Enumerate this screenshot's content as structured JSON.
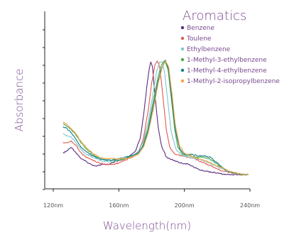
{
  "chart_data": {
    "type": "line",
    "title": "",
    "xlabel": "Wavelength(nm)",
    "ylabel": "Absorbance",
    "xlim": [
      120,
      240
    ],
    "x_ticks": [
      "120nm",
      "160nm",
      "200nm",
      "240nm"
    ],
    "x_tick_values": [
      120,
      160,
      200,
      240
    ],
    "legend_title": "Aromatics",
    "legend_position": "top-right",
    "grid": false,
    "series": [
      {
        "name": "Benzene",
        "color": "#5b2d7e",
        "points": [
          [
            126,
            0.2
          ],
          [
            128,
            0.21
          ],
          [
            131,
            0.24
          ],
          [
            134,
            0.2
          ],
          [
            137,
            0.16
          ],
          [
            140,
            0.14
          ],
          [
            143,
            0.12
          ],
          [
            146,
            0.11
          ],
          [
            150,
            0.12
          ],
          [
            154,
            0.12
          ],
          [
            158,
            0.14
          ],
          [
            162,
            0.15
          ],
          [
            166,
            0.17
          ],
          [
            170,
            0.21
          ],
          [
            173,
            0.3
          ],
          [
            175,
            0.45
          ],
          [
            177,
            0.65
          ],
          [
            178.5,
            0.78
          ],
          [
            179.5,
            0.83
          ],
          [
            180.5,
            0.8
          ],
          [
            182,
            0.6
          ],
          [
            184,
            0.38
          ],
          [
            186,
            0.25
          ],
          [
            189,
            0.17
          ],
          [
            193,
            0.15
          ],
          [
            198,
            0.13
          ],
          [
            203,
            0.12
          ],
          [
            206,
            0.1
          ],
          [
            210,
            0.08
          ],
          [
            215,
            0.07
          ],
          [
            220,
            0.06
          ],
          [
            225,
            0.05
          ],
          [
            230,
            0.05
          ],
          [
            235,
            0.05
          ],
          [
            239,
            0.05
          ]
        ]
      },
      {
        "name": "Toulene",
        "color": "#e05a4e",
        "points": [
          [
            126,
            0.27
          ],
          [
            128,
            0.27
          ],
          [
            131,
            0.28
          ],
          [
            134,
            0.25
          ],
          [
            137,
            0.2
          ],
          [
            140,
            0.17
          ],
          [
            144,
            0.15
          ],
          [
            148,
            0.13
          ],
          [
            152,
            0.12
          ],
          [
            156,
            0.12
          ],
          [
            160,
            0.13
          ],
          [
            164,
            0.15
          ],
          [
            168,
            0.17
          ],
          [
            172,
            0.21
          ],
          [
            175,
            0.3
          ],
          [
            178,
            0.5
          ],
          [
            180,
            0.68
          ],
          [
            182,
            0.81
          ],
          [
            183.5,
            0.84
          ],
          [
            185,
            0.79
          ],
          [
            187,
            0.58
          ],
          [
            189,
            0.36
          ],
          [
            191,
            0.24
          ],
          [
            194,
            0.19
          ],
          [
            198,
            0.18
          ],
          [
            202,
            0.17
          ],
          [
            206,
            0.16
          ],
          [
            210,
            0.14
          ],
          [
            214,
            0.12
          ],
          [
            218,
            0.1
          ],
          [
            222,
            0.08
          ],
          [
            226,
            0.07
          ],
          [
            230,
            0.06
          ],
          [
            235,
            0.05
          ],
          [
            239,
            0.05
          ]
        ]
      },
      {
        "name": "Ethylbenzene",
        "color": "#7fc4d3",
        "points": [
          [
            126,
            0.33
          ],
          [
            128,
            0.32
          ],
          [
            131,
            0.31
          ],
          [
            134,
            0.27
          ],
          [
            137,
            0.22
          ],
          [
            140,
            0.19
          ],
          [
            144,
            0.17
          ],
          [
            148,
            0.15
          ],
          [
            152,
            0.14
          ],
          [
            156,
            0.14
          ],
          [
            160,
            0.15
          ],
          [
            164,
            0.16
          ],
          [
            168,
            0.18
          ],
          [
            172,
            0.21
          ],
          [
            175,
            0.28
          ],
          [
            178,
            0.42
          ],
          [
            181,
            0.62
          ],
          [
            183,
            0.76
          ],
          [
            185,
            0.83
          ],
          [
            186.5,
            0.83
          ],
          [
            188,
            0.75
          ],
          [
            190,
            0.54
          ],
          [
            192,
            0.34
          ],
          [
            195,
            0.22
          ],
          [
            199,
            0.18
          ],
          [
            203,
            0.17
          ],
          [
            207,
            0.16
          ],
          [
            211,
            0.15
          ],
          [
            215,
            0.13
          ],
          [
            219,
            0.11
          ],
          [
            223,
            0.09
          ],
          [
            227,
            0.07
          ],
          [
            231,
            0.06
          ],
          [
            235,
            0.05
          ],
          [
            239,
            0.05
          ]
        ]
      },
      {
        "name": "1-Methyl-3-ethylbenzene",
        "color": "#4aa84f",
        "points": [
          [
            126,
            0.4
          ],
          [
            128,
            0.39
          ],
          [
            131,
            0.36
          ],
          [
            134,
            0.32
          ],
          [
            137,
            0.27
          ],
          [
            140,
            0.23
          ],
          [
            144,
            0.19
          ],
          [
            148,
            0.16
          ],
          [
            152,
            0.15
          ],
          [
            156,
            0.15
          ],
          [
            160,
            0.15
          ],
          [
            164,
            0.16
          ],
          [
            168,
            0.18
          ],
          [
            172,
            0.2
          ],
          [
            175,
            0.26
          ],
          [
            178,
            0.38
          ],
          [
            181,
            0.56
          ],
          [
            184,
            0.73
          ],
          [
            186,
            0.81
          ],
          [
            188,
            0.84
          ],
          [
            190,
            0.78
          ],
          [
            192,
            0.58
          ],
          [
            194,
            0.37
          ],
          [
            196,
            0.24
          ],
          [
            199,
            0.19
          ],
          [
            203,
            0.18
          ],
          [
            207,
            0.17
          ],
          [
            211,
            0.17
          ],
          [
            215,
            0.16
          ],
          [
            219,
            0.13
          ],
          [
            223,
            0.1
          ],
          [
            227,
            0.07
          ],
          [
            231,
            0.06
          ],
          [
            235,
            0.05
          ],
          [
            239,
            0.05
          ]
        ]
      },
      {
        "name": "1-Methyl-4-ethylbenzene",
        "color": "#127d84",
        "points": [
          [
            126,
            0.38
          ],
          [
            128,
            0.37
          ],
          [
            131,
            0.34
          ],
          [
            134,
            0.29
          ],
          [
            137,
            0.24
          ],
          [
            140,
            0.21
          ],
          [
            144,
            0.18
          ],
          [
            148,
            0.16
          ],
          [
            152,
            0.15
          ],
          [
            156,
            0.15
          ],
          [
            160,
            0.16
          ],
          [
            164,
            0.17
          ],
          [
            168,
            0.18
          ],
          [
            172,
            0.2
          ],
          [
            175,
            0.25
          ],
          [
            178,
            0.36
          ],
          [
            181,
            0.53
          ],
          [
            184,
            0.7
          ],
          [
            186.5,
            0.8
          ],
          [
            188.5,
            0.84
          ],
          [
            190.5,
            0.77
          ],
          [
            192.5,
            0.56
          ],
          [
            194.5,
            0.36
          ],
          [
            197,
            0.23
          ],
          [
            200,
            0.19
          ],
          [
            204,
            0.19
          ],
          [
            208,
            0.18
          ],
          [
            212,
            0.18
          ],
          [
            216,
            0.17
          ],
          [
            219,
            0.14
          ],
          [
            223,
            0.1
          ],
          [
            227,
            0.07
          ],
          [
            231,
            0.06
          ],
          [
            235,
            0.05
          ],
          [
            239,
            0.05
          ]
        ]
      },
      {
        "name": "1-Methyl-2-isopropylbenzene",
        "color": "#f4a340",
        "points": [
          [
            126,
            0.41
          ],
          [
            128,
            0.4
          ],
          [
            131,
            0.37
          ],
          [
            134,
            0.33
          ],
          [
            137,
            0.28
          ],
          [
            140,
            0.24
          ],
          [
            144,
            0.2
          ],
          [
            148,
            0.17
          ],
          [
            152,
            0.16
          ],
          [
            156,
            0.16
          ],
          [
            160,
            0.16
          ],
          [
            164,
            0.16
          ],
          [
            168,
            0.17
          ],
          [
            172,
            0.19
          ],
          [
            175,
            0.24
          ],
          [
            178,
            0.34
          ],
          [
            181,
            0.5
          ],
          [
            184,
            0.68
          ],
          [
            186.5,
            0.79
          ],
          [
            188.5,
            0.84
          ],
          [
            190.5,
            0.79
          ],
          [
            192.5,
            0.6
          ],
          [
            194.5,
            0.39
          ],
          [
            197,
            0.25
          ],
          [
            200,
            0.2
          ],
          [
            204,
            0.18
          ],
          [
            208,
            0.16
          ],
          [
            212,
            0.15
          ],
          [
            216,
            0.13
          ],
          [
            220,
            0.11
          ],
          [
            224,
            0.09
          ],
          [
            228,
            0.07
          ],
          [
            232,
            0.06
          ],
          [
            236,
            0.05
          ],
          [
            239,
            0.05
          ]
        ]
      }
    ]
  }
}
